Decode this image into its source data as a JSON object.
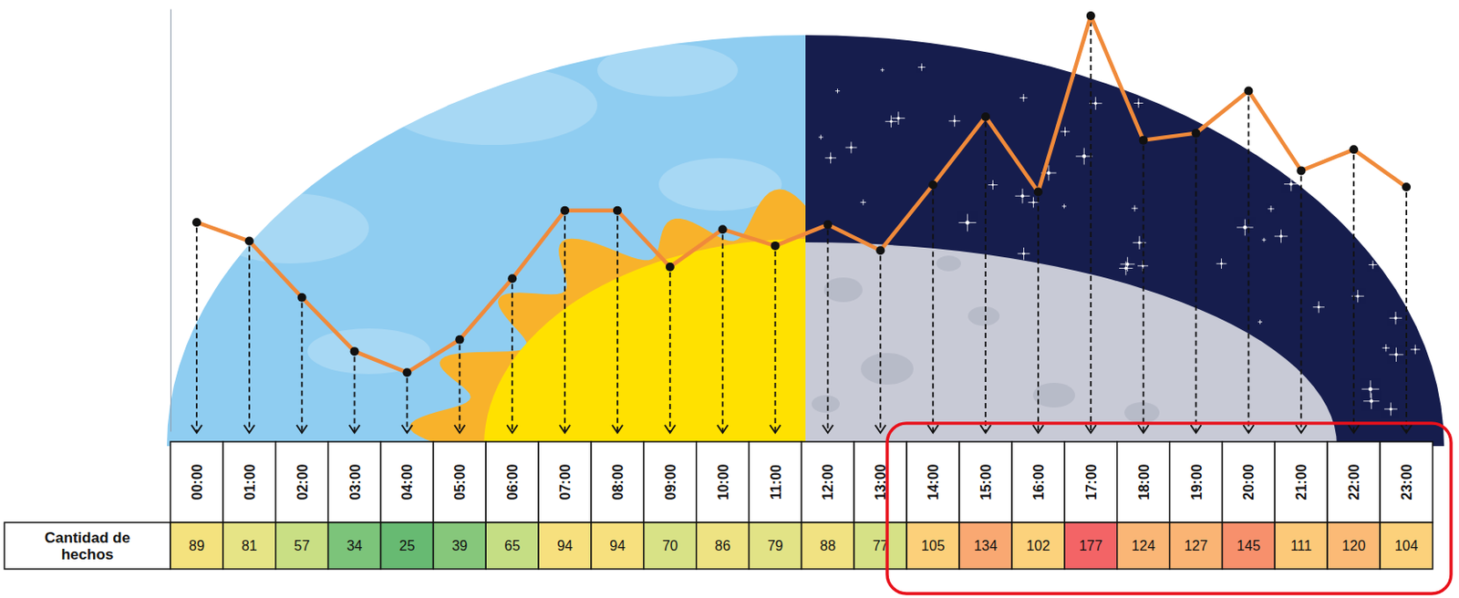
{
  "chart_data": {
    "type": "line",
    "categories": [
      "00:00",
      "01:00",
      "02:00",
      "03:00",
      "04:00",
      "05:00",
      "06:00",
      "07:00",
      "08:00",
      "09:00",
      "10:00",
      "11:00",
      "12:00",
      "13:00",
      "14:00",
      "15:00",
      "16:00",
      "17:00",
      "18:00",
      "19:00",
      "20:00",
      "21:00",
      "22:00",
      "23:00"
    ],
    "series": [
      {
        "name": "Cantidad de hechos",
        "color": "#f08a3a",
        "marker": "circle",
        "values": [
          89,
          81,
          57,
          34,
          25,
          39,
          65,
          94,
          94,
          70,
          86,
          79,
          88,
          77,
          105,
          134,
          102,
          177,
          124,
          127,
          145,
          111,
          120,
          104
        ],
        "colors": [
          "#f4e27e",
          "#e6e486",
          "#c9df84",
          "#7cc47a",
          "#67ba72",
          "#86c77b",
          "#c5de84",
          "#f7e07e",
          "#f7e07e",
          "#d8e286",
          "#eee383",
          "#e2e386",
          "#f1e282",
          "#d6e186",
          "#fcd07a",
          "#f9a872",
          "#fcd27c",
          "#f36466",
          "#fab676",
          "#fab474",
          "#f7906c",
          "#fcc979",
          "#fbba76",
          "#fcd17b"
        ]
      }
    ],
    "ylim": [
      0,
      180
    ],
    "data_labels": true,
    "tick_labels": "x",
    "grid": false
  }
}
